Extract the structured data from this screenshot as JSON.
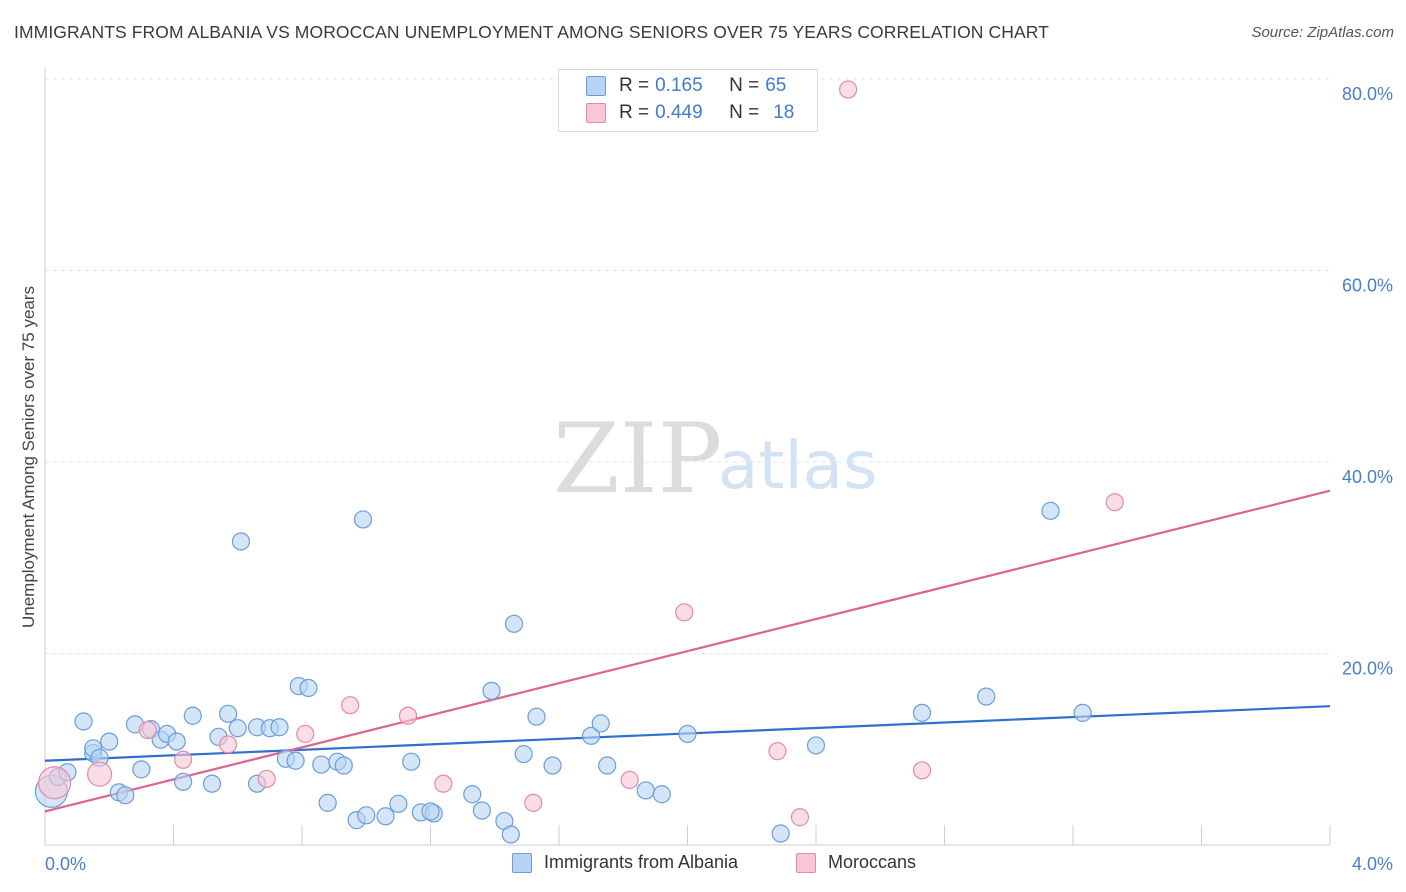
{
  "title": "IMMIGRANTS FROM ALBANIA VS MOROCCAN UNEMPLOYMENT AMONG SENIORS OVER 75 YEARS CORRELATION CHART",
  "source": "Source: ZipAtlas.com",
  "watermark": {
    "zip": "ZIP",
    "atlas": "atlas"
  },
  "colors": {
    "albania_fill": "#b8d3f4",
    "albania_stroke": "#6a9edb",
    "albania_line": "#2f6fce",
    "moroccan_fill": "#f8c6d6",
    "moroccan_stroke": "#e48aa8",
    "moroccan_line": "#e0628f",
    "grid": "#e4e4e4",
    "axis_text": "#4a7fc8"
  },
  "legend": {
    "rows": [
      {
        "r_label": "R = ",
        "r_value": "0.165",
        "n_label": "N = ",
        "n_value": "65"
      },
      {
        "r_label": "R = ",
        "r_value": "0.449",
        "n_label": "N = ",
        "n_value": "18"
      }
    ]
  },
  "bottom_legend": {
    "albania": "Immigrants from Albania",
    "moroccan": "Moroccans"
  },
  "chart_data": {
    "type": "scatter",
    "title": "IMMIGRANTS FROM ALBANIA VS MOROCCAN UNEMPLOYMENT AMONG SENIORS OVER 75 YEARS CORRELATION CHART",
    "xlabel": "",
    "ylabel": "Unemployment Among Seniors over 75 years",
    "xlim": [
      0.0,
      4.0
    ],
    "ylim": [
      0.0,
      80.0
    ],
    "x_tick_labels": [
      "0.0%",
      "4.0%"
    ],
    "y_ticks": [
      20,
      40,
      60,
      80
    ],
    "y_tick_labels": [
      "20.0%",
      "40.0%",
      "60.0%",
      "80.0%"
    ],
    "grid": true,
    "series": [
      {
        "name": "Immigrants from Albania",
        "r": 0.165,
        "n": 65,
        "trend": {
          "x": [
            0.0,
            4.0
          ],
          "y": [
            8.8,
            14.5
          ]
        },
        "points": [
          {
            "x": 0.02,
            "y": 5.6,
            "size": "large"
          },
          {
            "x": 0.04,
            "y": 7.1
          },
          {
            "x": 0.07,
            "y": 7.6
          },
          {
            "x": 0.12,
            "y": 12.9
          },
          {
            "x": 0.15,
            "y": 9.6
          },
          {
            "x": 0.15,
            "y": 10.1
          },
          {
            "x": 0.17,
            "y": 9.1
          },
          {
            "x": 0.2,
            "y": 10.8
          },
          {
            "x": 0.23,
            "y": 5.5
          },
          {
            "x": 0.25,
            "y": 5.2
          },
          {
            "x": 0.28,
            "y": 12.6
          },
          {
            "x": 0.3,
            "y": 7.9
          },
          {
            "x": 0.33,
            "y": 12.1
          },
          {
            "x": 0.36,
            "y": 11.0
          },
          {
            "x": 0.38,
            "y": 11.6
          },
          {
            "x": 0.41,
            "y": 10.8
          },
          {
            "x": 0.43,
            "y": 6.6
          },
          {
            "x": 0.46,
            "y": 13.5
          },
          {
            "x": 0.52,
            "y": 6.4
          },
          {
            "x": 0.54,
            "y": 11.3
          },
          {
            "x": 0.57,
            "y": 13.7
          },
          {
            "x": 0.6,
            "y": 12.2
          },
          {
            "x": 0.61,
            "y": 31.7
          },
          {
            "x": 0.66,
            "y": 12.3
          },
          {
            "x": 0.66,
            "y": 6.4
          },
          {
            "x": 0.7,
            "y": 12.2
          },
          {
            "x": 0.73,
            "y": 12.3
          },
          {
            "x": 0.75,
            "y": 9.0
          },
          {
            "x": 0.78,
            "y": 8.8
          },
          {
            "x": 0.79,
            "y": 16.6
          },
          {
            "x": 0.82,
            "y": 16.4
          },
          {
            "x": 0.86,
            "y": 8.4
          },
          {
            "x": 0.88,
            "y": 4.4
          },
          {
            "x": 0.91,
            "y": 8.7
          },
          {
            "x": 0.93,
            "y": 8.3
          },
          {
            "x": 0.97,
            "y": 2.6
          },
          {
            "x": 0.99,
            "y": 34.0
          },
          {
            "x": 1.0,
            "y": 3.1
          },
          {
            "x": 1.06,
            "y": 3.0
          },
          {
            "x": 1.1,
            "y": 4.3
          },
          {
            "x": 1.14,
            "y": 8.7
          },
          {
            "x": 1.17,
            "y": 3.4
          },
          {
            "x": 1.21,
            "y": 3.3
          },
          {
            "x": 1.2,
            "y": 3.5
          },
          {
            "x": 1.33,
            "y": 5.3
          },
          {
            "x": 1.36,
            "y": 3.6
          },
          {
            "x": 1.39,
            "y": 16.1
          },
          {
            "x": 1.43,
            "y": 2.5
          },
          {
            "x": 1.45,
            "y": 1.1
          },
          {
            "x": 1.46,
            "y": 23.1
          },
          {
            "x": 1.49,
            "y": 9.5
          },
          {
            "x": 1.53,
            "y": 13.4
          },
          {
            "x": 1.58,
            "y": 8.3
          },
          {
            "x": 1.7,
            "y": 11.4
          },
          {
            "x": 1.73,
            "y": 12.7
          },
          {
            "x": 1.75,
            "y": 8.3
          },
          {
            "x": 1.87,
            "y": 5.7
          },
          {
            "x": 1.92,
            "y": 5.3
          },
          {
            "x": 2.0,
            "y": 11.6
          },
          {
            "x": 2.4,
            "y": 10.4
          },
          {
            "x": 2.29,
            "y": 1.2
          },
          {
            "x": 2.73,
            "y": 13.8
          },
          {
            "x": 2.93,
            "y": 15.5
          },
          {
            "x": 3.13,
            "y": 34.9
          },
          {
            "x": 3.23,
            "y": 13.8
          }
        ]
      },
      {
        "name": "Moroccans",
        "r": 0.449,
        "n": 18,
        "trend": {
          "x": [
            0.0,
            4.0
          ],
          "y": [
            3.5,
            37.0
          ]
        },
        "points": [
          {
            "x": 0.03,
            "y": 6.5,
            "size": "large"
          },
          {
            "x": 0.17,
            "y": 7.4,
            "size": "medium"
          },
          {
            "x": 0.32,
            "y": 12.0
          },
          {
            "x": 0.43,
            "y": 8.9
          },
          {
            "x": 0.57,
            "y": 10.5
          },
          {
            "x": 0.69,
            "y": 6.9
          },
          {
            "x": 0.81,
            "y": 11.6
          },
          {
            "x": 0.95,
            "y": 14.6
          },
          {
            "x": 1.13,
            "y": 13.5
          },
          {
            "x": 1.24,
            "y": 6.4
          },
          {
            "x": 1.52,
            "y": 4.4
          },
          {
            "x": 1.82,
            "y": 6.8
          },
          {
            "x": 1.99,
            "y": 24.3
          },
          {
            "x": 2.28,
            "y": 9.8
          },
          {
            "x": 2.35,
            "y": 2.9
          },
          {
            "x": 2.5,
            "y": 78.9
          },
          {
            "x": 2.73,
            "y": 7.8
          },
          {
            "x": 3.33,
            "y": 35.8
          }
        ]
      }
    ]
  }
}
